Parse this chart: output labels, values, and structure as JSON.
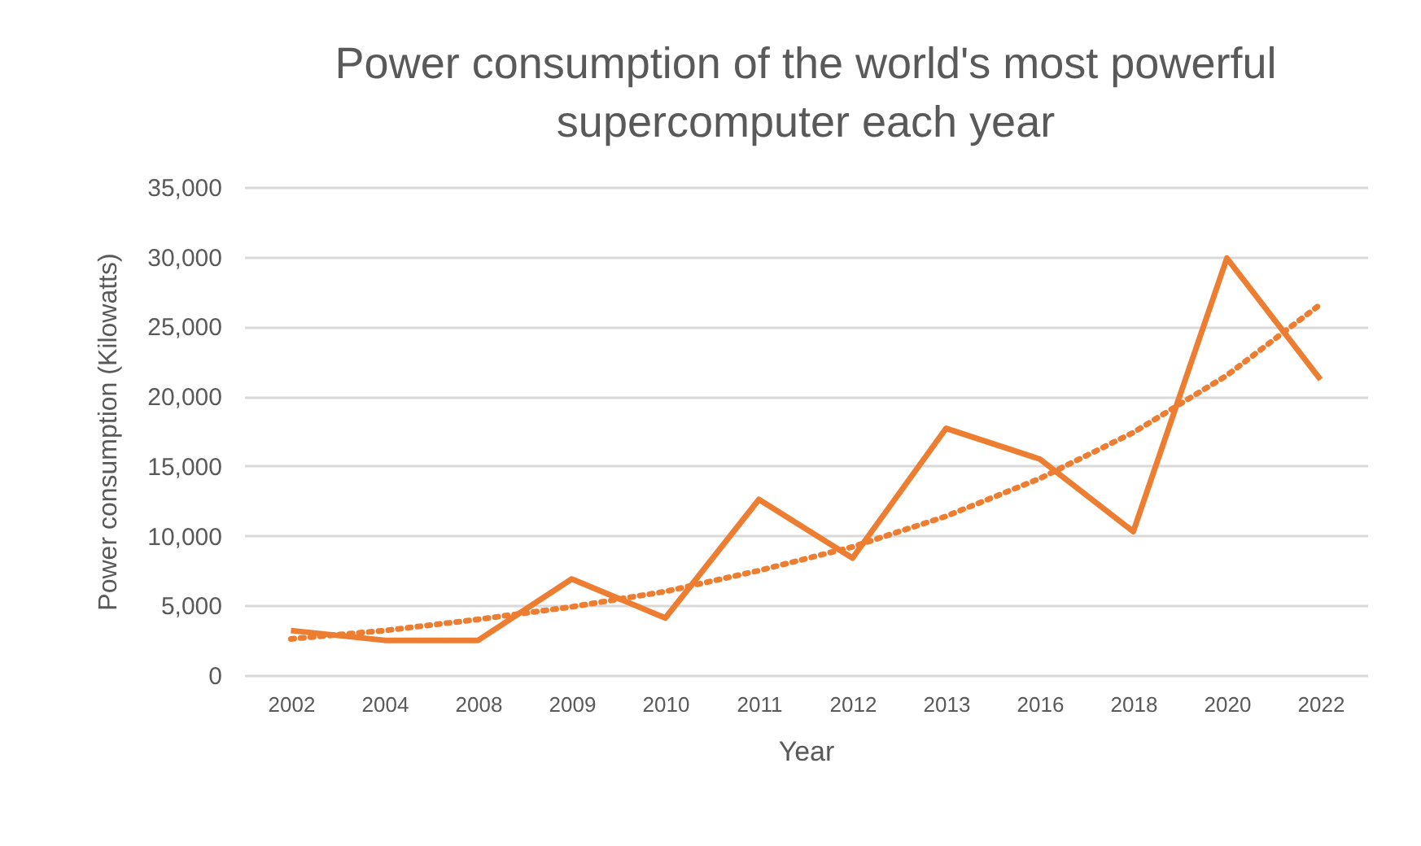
{
  "chart_data": {
    "type": "line",
    "title": [
      "Power consumption of the world's most powerful",
      "supercomputer each year"
    ],
    "xlabel": "Year",
    "ylabel": "Power consumption (Kilowatts)",
    "categories": [
      "2002",
      "2004",
      "2008",
      "2009",
      "2010",
      "2011",
      "2012",
      "2013",
      "2016",
      "2018",
      "2020",
      "2022"
    ],
    "series": [
      {
        "color": "#ed7d31",
        "line_style": "solid",
        "values": [
          3200,
          2500,
          2500,
          6900,
          4100,
          12600,
          8400,
          17700,
          15500,
          10300,
          29900,
          21200
        ]
      },
      {
        "color": "#ed7d31",
        "line_style": "dotted",
        "values": [
          2600,
          3200,
          4000,
          4900,
          6000,
          7500,
          9200,
          11400,
          14100,
          17400,
          21500,
          26600
        ]
      }
    ],
    "ylim": [
      0,
      35000
    ],
    "yticks": [
      {
        "value": 0,
        "label": "0"
      },
      {
        "value": 5000,
        "label": "5,000"
      },
      {
        "value": 10000,
        "label": "10,000"
      },
      {
        "value": 15000,
        "label": "15,000"
      },
      {
        "value": 20000,
        "label": "20,000"
      },
      {
        "value": 25000,
        "label": "25,000"
      },
      {
        "value": 30000,
        "label": "30,000"
      },
      {
        "value": 35000,
        "label": "35,000"
      }
    ],
    "grid": "y"
  }
}
